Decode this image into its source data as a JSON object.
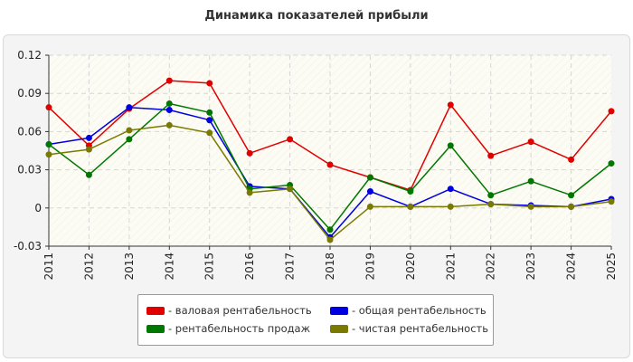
{
  "chart_data": {
    "type": "line",
    "title": "Динамика показателей прибыли",
    "categories": [
      "2011",
      "2012",
      "2013",
      "2014",
      "2015",
      "2016",
      "2017",
      "2018",
      "2019",
      "2020",
      "2021",
      "2022",
      "2023",
      "2024",
      "2025"
    ],
    "ylim": [
      -0.03,
      0.12
    ],
    "yticks": [
      -0.03,
      0,
      0.03,
      0.06,
      0.09,
      0.12
    ],
    "ytick_labels": [
      "-0.03",
      "0",
      "0.03",
      "0.06",
      "0.09",
      "0.12"
    ],
    "grid": true,
    "legend_position": "bottom",
    "series": [
      {
        "name": "- валовая рентабельность",
        "color": "#e00000",
        "values": [
          0.079,
          0.049,
          0.078,
          0.1,
          0.098,
          0.043,
          0.054,
          0.034,
          0.024,
          0.014,
          0.081,
          0.041,
          0.052,
          0.038,
          0.076
        ]
      },
      {
        "name": "- общая рентабельность",
        "color": "#0000e0",
        "values": [
          0.05,
          0.055,
          0.079,
          0.077,
          0.069,
          0.017,
          0.015,
          -0.023,
          0.013,
          0.001,
          0.015,
          0.003,
          0.002,
          0.001,
          0.007
        ]
      },
      {
        "name": "- рентабельность продаж",
        "color": "#007800",
        "values": [
          0.05,
          0.026,
          0.054,
          0.082,
          0.075,
          0.015,
          0.018,
          -0.017,
          0.024,
          0.013,
          0.049,
          0.01,
          0.021,
          0.01,
          0.035
        ]
      },
      {
        "name": "- чистая рентабельность",
        "color": "#7a7a00",
        "values": [
          0.042,
          0.046,
          0.061,
          0.065,
          0.059,
          0.012,
          0.015,
          -0.025,
          0.001,
          0.001,
          0.001,
          0.003,
          0.001,
          0.001,
          0.005
        ]
      }
    ]
  }
}
